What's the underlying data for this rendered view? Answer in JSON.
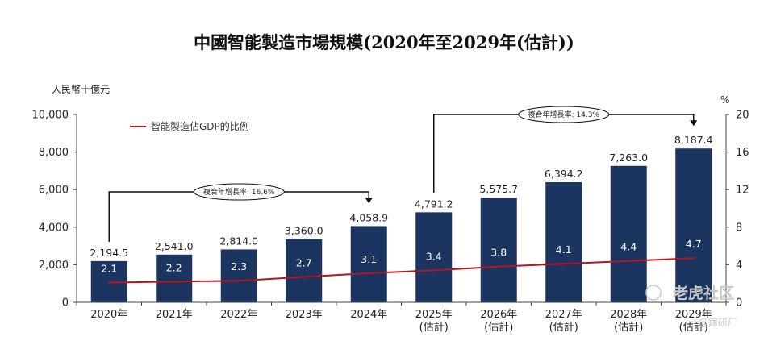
{
  "chart_data": {
    "type": "bar",
    "title": "中國智能製造市場規模(2020年至2029年(估計))",
    "ylabel": "人民幣十億元",
    "y2label": "%",
    "ylim": [
      0,
      10000
    ],
    "y2lim": [
      0,
      20
    ],
    "yticks": [
      "0",
      "2,000",
      "4,000",
      "6,000",
      "8,000",
      "10,000"
    ],
    "y2ticks": [
      "0",
      "4",
      "8",
      "12",
      "16",
      "20"
    ],
    "categories": [
      {
        "year": "2020年",
        "note": ""
      },
      {
        "year": "2021年",
        "note": ""
      },
      {
        "year": "2022年",
        "note": ""
      },
      {
        "year": "2023年",
        "note": ""
      },
      {
        "year": "2024年",
        "note": ""
      },
      {
        "year": "2025年",
        "note": "(估計)"
      },
      {
        "year": "2026年",
        "note": "(估計)"
      },
      {
        "year": "2027年",
        "note": "(估計)"
      },
      {
        "year": "2028年",
        "note": "(估計)"
      },
      {
        "year": "2029年",
        "note": "(估計)"
      }
    ],
    "series": [
      {
        "type": "bar",
        "values": [
          2194.5,
          2541.0,
          2814.0,
          3360.0,
          4058.9,
          4791.2,
          5575.7,
          6394.2,
          7263.0,
          8187.4
        ],
        "labels": [
          "2,194.5",
          "2,541.0",
          "2,814.0",
          "3,360.0",
          "4,058.9",
          "4,791.2",
          "5,575.7",
          "6,394.2",
          "7,263.0",
          "8,187.4"
        ],
        "color": "#1b3560"
      },
      {
        "name": "智能製造佔GDP的比例",
        "type": "line",
        "axis": "right",
        "values": [
          2.1,
          2.2,
          2.3,
          2.7,
          3.1,
          3.4,
          3.8,
          4.1,
          4.4,
          4.7
        ],
        "labels": [
          "2.1",
          "2.2",
          "2.3",
          "2.7",
          "3.1",
          "3.4",
          "3.8",
          "4.1",
          "4.4",
          "4.7"
        ],
        "color": "#b5161f"
      }
    ],
    "annotations": [
      {
        "text": "複合年增長率: 16.6%",
        "from": 0,
        "to": 4
      },
      {
        "text": "複合年增長率: 14.3%",
        "from": 5,
        "to": 9
      }
    ],
    "legend": "top-left",
    "grid": false
  },
  "watermark": {
    "brand": "老虎社区",
    "account": "@鎵研厂"
  }
}
